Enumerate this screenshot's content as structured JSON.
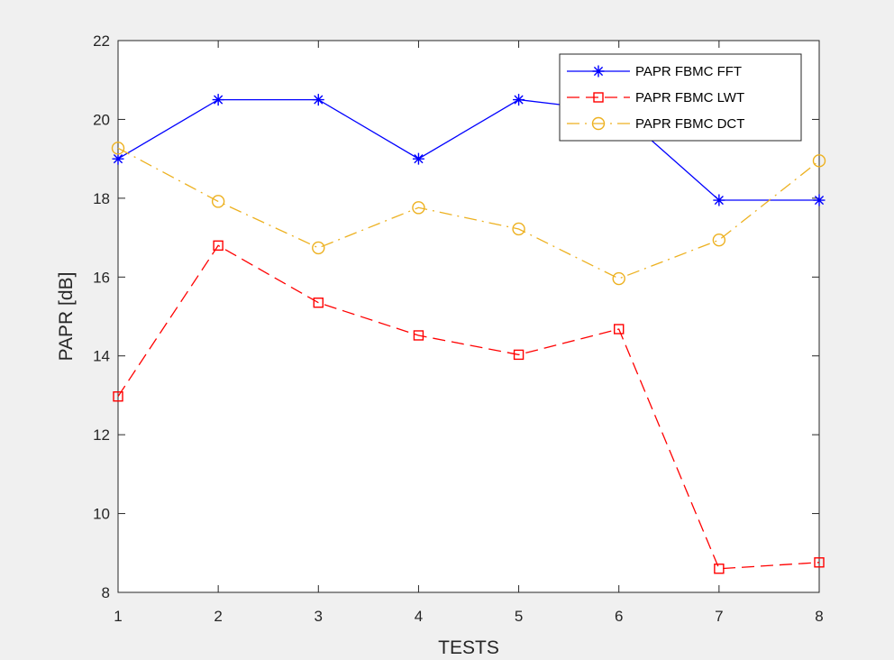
{
  "chart_data": {
    "type": "line",
    "title": "",
    "xlabel": "TESTS",
    "ylabel": "PAPR [dB]",
    "xlim": [
      1,
      8
    ],
    "ylim": [
      8,
      22
    ],
    "xticks": [
      1,
      2,
      3,
      4,
      5,
      6,
      7,
      8
    ],
    "yticks": [
      8,
      10,
      12,
      14,
      16,
      18,
      20,
      22
    ],
    "grid": false,
    "legend_position": "top-right",
    "x": [
      1,
      2,
      3,
      4,
      5,
      6,
      7,
      8
    ],
    "series": [
      {
        "name": "PAPR FBMC FFT",
        "values": [
          19.0,
          20.5,
          20.5,
          19.0,
          20.5,
          20.2,
          17.95,
          17.95
        ],
        "color": "#0000ff",
        "marker": "asterisk",
        "line_style": "solid"
      },
      {
        "name": "PAPR FBMC LWT",
        "values": [
          12.97,
          16.8,
          15.35,
          14.52,
          14.03,
          14.68,
          8.6,
          8.76
        ],
        "color": "#ff0000",
        "marker": "square",
        "line_style": "dashed"
      },
      {
        "name": "PAPR FBMC DCT",
        "values": [
          19.27,
          17.92,
          16.74,
          17.76,
          17.22,
          15.96,
          16.94,
          18.95
        ],
        "color": "#edb120",
        "marker": "circle",
        "line_style": "dash-dot"
      }
    ]
  }
}
